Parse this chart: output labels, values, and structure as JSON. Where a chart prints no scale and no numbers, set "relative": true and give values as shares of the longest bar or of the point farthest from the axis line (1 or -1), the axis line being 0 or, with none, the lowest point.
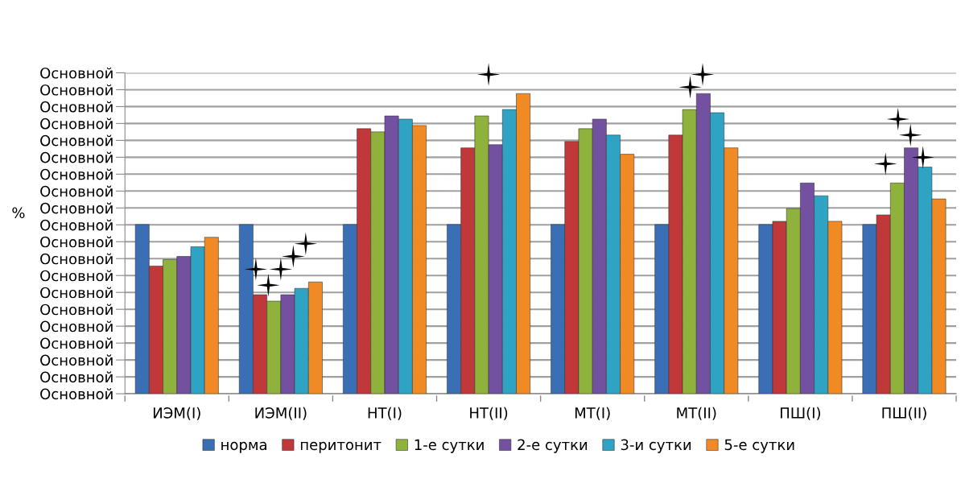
{
  "chart_data": {
    "type": "bar",
    "relative": true,
    "categories": [
      "ИЭМ(I)",
      "ИЭМ(II)",
      "НТ(I)",
      "НТ(II)",
      "МТ(I)",
      "МТ(II)",
      "ПШ(I)",
      "ПШ(II)"
    ],
    "series": [
      {
        "name": "норма",
        "color": "#3a6fb5",
        "values": [
          0.53,
          0.53,
          0.53,
          0.53,
          0.53,
          0.53,
          0.53,
          0.53
        ]
      },
      {
        "name": "перитонит",
        "color": "#c0383a",
        "values": [
          0.4,
          0.31,
          0.83,
          0.77,
          0.79,
          0.81,
          0.54,
          0.56
        ]
      },
      {
        "name": "1-е сутки",
        "color": "#8fb23d",
        "values": [
          0.42,
          0.29,
          0.82,
          0.87,
          0.83,
          0.89,
          0.58,
          0.66
        ]
      },
      {
        "name": "2-е сутки",
        "color": "#7350a0",
        "values": [
          0.43,
          0.31,
          0.87,
          0.78,
          0.86,
          0.94,
          0.66,
          0.77
        ]
      },
      {
        "name": "3-и сутки",
        "color": "#2ea3c4",
        "values": [
          0.46,
          0.33,
          0.86,
          0.89,
          0.81,
          0.88,
          0.62,
          0.71
        ]
      },
      {
        "name": "5-е сутки",
        "color": "#f08a24",
        "values": [
          0.49,
          0.35,
          0.84,
          0.94,
          0.75,
          0.77,
          0.54,
          0.61
        ]
      },
      {
        "type": "scatter",
        "color": "#000000",
        "marker": "star",
        "x": [
          "ИЭМ(II)",
          "ИЭМ(II)",
          "ИЭМ(II)",
          "ИЭМ(II)",
          "ИЭМ(II)",
          "НТ(II)",
          "МТ(II)",
          "МТ(II)",
          "ПШ(II)",
          "ПШ(II)",
          "ПШ(II)",
          "ПШ(II)"
        ],
        "values": [
          0.39,
          0.34,
          0.39,
          0.43,
          0.47,
          1,
          0.96,
          1,
          0.72,
          0.86,
          0.81,
          0.74
        ]
      }
    ],
    "annotations": [
      "%",
      "Основной",
      "Основной",
      "Основной",
      "Основной",
      "Основной",
      "Основной",
      "Основной",
      "Основной",
      "Основной",
      "Основной",
      "Основной",
      "Основной",
      "Основной",
      "Основной",
      "Основной",
      "Основной",
      "Основной",
      "Основной",
      "Основной",
      "Основной"
    ],
    "legend": "bottom"
  }
}
